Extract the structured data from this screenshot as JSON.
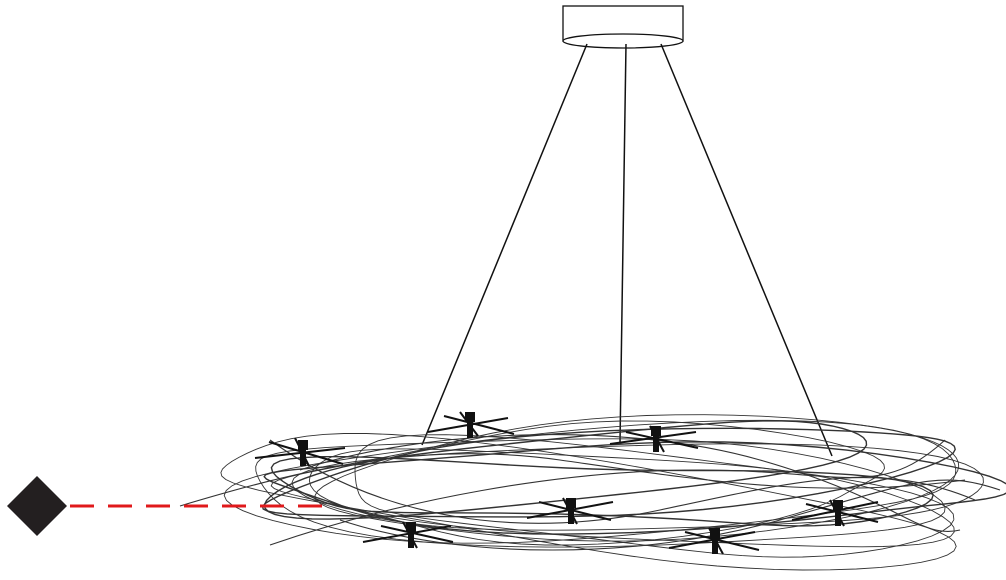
{
  "diagram": {
    "subject": "chandelier-line-drawing",
    "colors": {
      "background": "#ffffff",
      "wire": "#111111",
      "tangle": "#333333",
      "socket": "#111111",
      "marker": "#231f20",
      "pointer": "#e0191b"
    },
    "icons": {
      "canopy": "ceiling-canopy-icon",
      "marker": "diamond-marker-icon",
      "bulb": "bulb-socket-icon"
    },
    "suspension_wire_count": 3,
    "bulb_socket_count": 7,
    "tangle_loop_count": 12
  }
}
